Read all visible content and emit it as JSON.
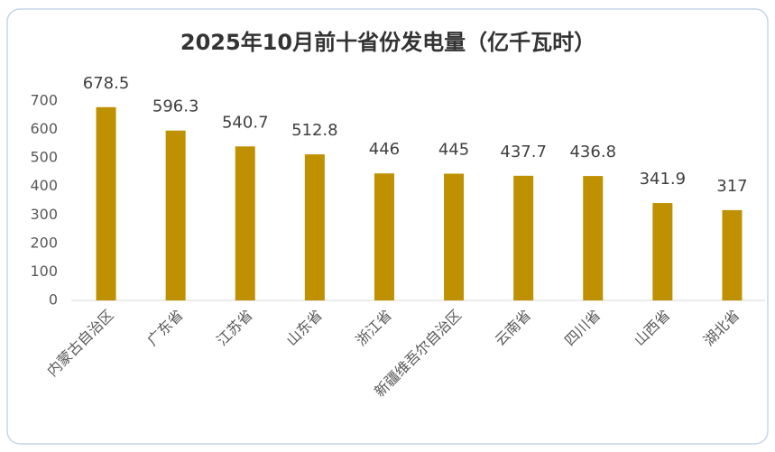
{
  "chart_data": {
    "type": "bar",
    "title": "2025年10月前十省份发电量（亿千瓦时）",
    "categories": [
      "内蒙古自治区",
      "广东省",
      "江苏省",
      "山东省",
      "浙江省",
      "新疆维吾尔自治区",
      "云南省",
      "四川省",
      "山西省",
      "湖北省"
    ],
    "values": [
      678.5,
      596.3,
      540.7,
      512.8,
      446,
      445,
      437.7,
      436.8,
      341.9,
      317
    ],
    "color": "#bf9000",
    "ylim": [
      0,
      700
    ],
    "yticks": [
      0,
      100,
      200,
      300,
      400,
      500,
      600,
      700
    ],
    "grid": false
  }
}
